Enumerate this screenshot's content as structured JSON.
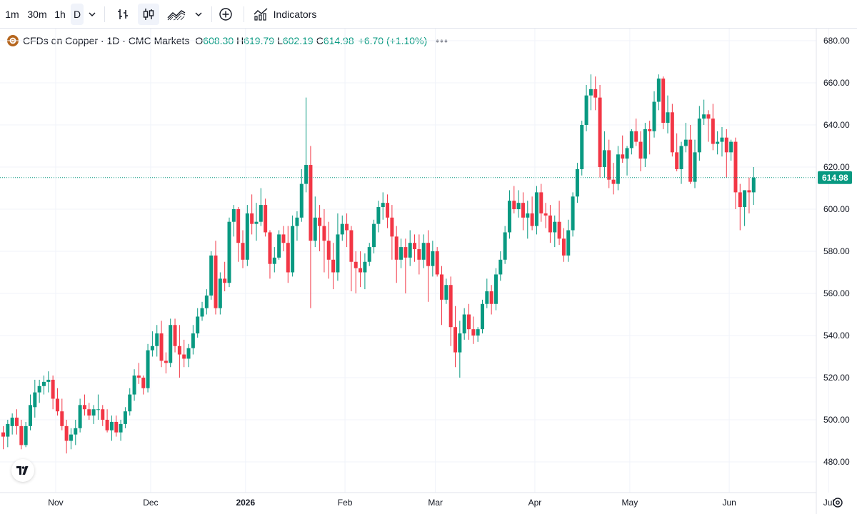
{
  "toolbar": {
    "intervals": [
      {
        "label": "1m",
        "active": false
      },
      {
        "label": "30m",
        "active": false
      },
      {
        "label": "1h",
        "active": false
      },
      {
        "label": "D",
        "active": true
      }
    ],
    "interval_dropdown_icon": "chevron-down-icon",
    "bar_style_icon": "bars-icon",
    "candle_style_icon": "candles-icon",
    "chart_type_icon": "line-area-icon",
    "chart_type_dropdown_icon": "chevron-down-icon",
    "compare_icon": "plus-circle-icon",
    "indicators_icon": "indicators-icon",
    "indicators_label": "Indicators"
  },
  "legend": {
    "symbol_icon": "copper-symbol-icon",
    "title": "CFDs on Copper · 1D · CMC Markets",
    "open_label": "O",
    "open": "608.30",
    "high_label": "H",
    "high": "619.79",
    "low_label": "L",
    "low": "602.19",
    "close_label": "C",
    "close": "614.98",
    "change": "+6.70 (+1.10%)",
    "more_icon": "more-dots-icon"
  },
  "colors": {
    "up": "#089981",
    "down": "#f23645",
    "grid": "#f0f3fa",
    "axis_text": "#131722",
    "price_line": "#089981"
  },
  "chart_data": {
    "type": "candlestick",
    "title": "CFDs on Copper · 1D · CMC Markets",
    "interval": "1D",
    "ylim": [
      472,
      685
    ],
    "y_ticks": [
      480,
      500,
      520,
      540,
      560,
      580,
      600,
      620,
      640,
      660,
      680
    ],
    "y_tick_labels": [
      "480.00",
      "500.00",
      "520.00",
      "540.00",
      "560.00",
      "580.00",
      "600.00",
      "620.00",
      "640.00",
      "660.00",
      "680.00"
    ],
    "x_ticks": [
      {
        "label": "Nov",
        "index": 12
      },
      {
        "label": "Dec",
        "index": 33
      },
      {
        "label": "2026",
        "index": 54
      },
      {
        "label": "Feb",
        "index": 76
      },
      {
        "label": "Mar",
        "index": 96
      },
      {
        "label": "Apr",
        "index": 118
      },
      {
        "label": "May",
        "index": 139
      },
      {
        "label": "Jun",
        "index": 161
      },
      {
        "label": "Jul",
        "index": 183
      }
    ],
    "last_price": 614.98,
    "last_price_label": "614.98",
    "ohlc": [
      [
        494,
        497,
        486,
        492
      ],
      [
        492,
        500,
        487,
        498
      ],
      [
        497,
        503,
        493,
        501
      ],
      [
        501,
        505,
        493,
        497
      ],
      [
        497,
        500,
        486,
        488
      ],
      [
        488,
        499,
        487,
        497
      ],
      [
        497,
        512,
        495,
        507
      ],
      [
        506,
        519,
        501,
        513
      ],
      [
        513,
        519,
        508,
        516
      ],
      [
        516,
        521,
        512,
        518
      ],
      [
        518,
        523,
        513,
        519
      ],
      [
        519,
        521,
        505,
        510
      ],
      [
        510,
        515,
        502,
        504
      ],
      [
        504,
        510,
        495,
        497
      ],
      [
        497,
        500,
        484,
        490
      ],
      [
        490,
        496,
        486,
        493
      ],
      [
        493,
        500,
        488,
        496
      ],
      [
        496,
        510,
        494,
        507
      ],
      [
        507,
        512,
        502,
        505
      ],
      [
        505,
        508,
        500,
        502
      ],
      [
        502,
        507,
        498,
        505
      ],
      [
        505,
        512,
        500,
        505
      ],
      [
        505,
        507,
        497,
        500
      ],
      [
        500,
        505,
        494,
        495
      ],
      [
        495,
        502,
        490,
        499
      ],
      [
        499,
        502,
        492,
        494
      ],
      [
        494,
        500,
        490,
        498
      ],
      [
        498,
        506,
        496,
        504
      ],
      [
        504,
        515,
        502,
        512
      ],
      [
        512,
        524,
        509,
        521
      ],
      [
        521,
        527,
        517,
        520
      ],
      [
        520,
        521,
        512,
        515
      ],
      [
        515,
        536,
        513,
        533
      ],
      [
        533,
        542,
        530,
        535
      ],
      [
        535,
        545,
        530,
        541
      ],
      [
        541,
        547,
        525,
        528
      ],
      [
        528,
        532,
        522,
        527
      ],
      [
        527,
        548,
        525,
        545
      ],
      [
        545,
        548,
        532,
        535
      ],
      [
        535,
        545,
        520,
        531
      ],
      [
        531,
        538,
        525,
        529
      ],
      [
        529,
        536,
        525,
        534
      ],
      [
        534,
        545,
        531,
        541
      ],
      [
        541,
        553,
        539,
        549
      ],
      [
        549,
        556,
        547,
        553
      ],
      [
        553,
        562,
        550,
        559
      ],
      [
        559,
        580,
        557,
        578
      ],
      [
        578,
        585,
        550,
        553
      ],
      [
        553,
        570,
        550,
        567
      ],
      [
        567,
        575,
        561,
        565
      ],
      [
        565,
        596,
        563,
        594
      ],
      [
        594,
        602,
        587,
        600
      ],
      [
        600,
        601,
        575,
        584
      ],
      [
        584,
        590,
        572,
        576
      ],
      [
        576,
        602,
        573,
        598
      ],
      [
        598,
        607,
        588,
        593
      ],
      [
        593,
        603,
        585,
        594
      ],
      [
        594,
        610,
        592,
        602
      ],
      [
        602,
        605,
        587,
        589
      ],
      [
        589,
        590,
        567,
        574
      ],
      [
        574,
        582,
        570,
        577
      ],
      [
        577,
        590,
        576,
        588
      ],
      [
        588,
        592,
        580,
        584
      ],
      [
        584,
        592,
        565,
        570
      ],
      [
        570,
        597,
        568,
        592
      ],
      [
        592,
        599,
        585,
        596
      ],
      [
        596,
        619,
        594,
        612
      ],
      [
        612,
        653,
        608,
        621
      ],
      [
        621,
        630,
        553,
        585
      ],
      [
        585,
        606,
        582,
        596
      ],
      [
        596,
        602,
        580,
        592
      ],
      [
        592,
        600,
        570,
        585
      ],
      [
        585,
        594,
        567,
        576
      ],
      [
        576,
        584,
        562,
        570
      ],
      [
        570,
        598,
        566,
        588
      ],
      [
        588,
        597,
        585,
        593
      ],
      [
        593,
        598,
        582,
        590
      ],
      [
        590,
        592,
        561,
        575
      ],
      [
        575,
        580,
        560,
        572
      ],
      [
        572,
        580,
        563,
        570
      ],
      [
        570,
        579,
        562,
        575
      ],
      [
        575,
        584,
        573,
        582
      ],
      [
        582,
        595,
        579,
        593
      ],
      [
        593,
        604,
        589,
        601
      ],
      [
        601,
        608,
        595,
        603
      ],
      [
        603,
        607,
        591,
        596
      ],
      [
        596,
        602,
        576,
        587
      ],
      [
        587,
        592,
        565,
        576
      ],
      [
        576,
        586,
        572,
        582
      ],
      [
        582,
        586,
        560,
        577
      ],
      [
        577,
        590,
        573,
        584
      ],
      [
        584,
        588,
        575,
        581
      ],
      [
        581,
        588,
        569,
        576
      ],
      [
        576,
        588,
        572,
        584
      ],
      [
        584,
        590,
        556,
        573
      ],
      [
        573,
        585,
        568,
        580
      ],
      [
        580,
        582,
        568,
        569
      ],
      [
        569,
        573,
        545,
        557
      ],
      [
        557,
        567,
        555,
        564
      ],
      [
        564,
        568,
        535,
        544
      ],
      [
        544,
        554,
        525,
        532
      ],
      [
        532,
        547,
        520,
        541
      ],
      [
        541,
        553,
        538,
        550
      ],
      [
        550,
        555,
        538,
        543
      ],
      [
        543,
        549,
        536,
        540
      ],
      [
        540,
        544,
        537,
        543
      ],
      [
        543,
        557,
        541,
        555
      ],
      [
        555,
        567,
        553,
        561
      ],
      [
        561,
        564,
        550,
        555
      ],
      [
        555,
        572,
        552,
        569
      ],
      [
        569,
        580,
        566,
        576
      ],
      [
        576,
        592,
        574,
        589
      ],
      [
        589,
        609,
        586,
        604
      ],
      [
        604,
        611,
        598,
        600
      ],
      [
        600,
        609,
        596,
        603
      ],
      [
        603,
        608,
        590,
        596
      ],
      [
        596,
        604,
        586,
        598
      ],
      [
        598,
        606,
        590,
        592
      ],
      [
        592,
        611,
        588,
        608
      ],
      [
        608,
        612,
        594,
        598
      ],
      [
        598,
        603,
        591,
        597
      ],
      [
        597,
        602,
        584,
        589
      ],
      [
        589,
        597,
        582,
        594
      ],
      [
        594,
        604,
        583,
        586
      ],
      [
        586,
        591,
        575,
        578
      ],
      [
        578,
        595,
        575,
        590
      ],
      [
        590,
        608,
        587,
        606
      ],
      [
        606,
        622,
        603,
        619
      ],
      [
        619,
        642,
        616,
        640
      ],
      [
        640,
        659,
        637,
        654
      ],
      [
        654,
        664,
        647,
        657
      ],
      [
        657,
        663,
        647,
        653
      ],
      [
        653,
        659,
        615,
        620
      ],
      [
        620,
        637,
        615,
        628
      ],
      [
        628,
        633,
        610,
        614
      ],
      [
        614,
        622,
        607,
        612
      ],
      [
        612,
        630,
        609,
        626
      ],
      [
        626,
        635,
        622,
        624
      ],
      [
        624,
        630,
        616,
        629
      ],
      [
        629,
        638,
        626,
        637
      ],
      [
        637,
        643,
        630,
        632
      ],
      [
        632,
        637,
        618,
        624
      ],
      [
        624,
        641,
        620,
        638
      ],
      [
        638,
        642,
        626,
        637
      ],
      [
        637,
        656,
        634,
        651
      ],
      [
        651,
        664,
        647,
        662
      ],
      [
        662,
        663,
        638,
        641
      ],
      [
        641,
        654,
        636,
        646
      ],
      [
        646,
        650,
        625,
        627
      ],
      [
        627,
        636,
        618,
        619
      ],
      [
        619,
        632,
        612,
        630
      ],
      [
        630,
        641,
        627,
        633
      ],
      [
        633,
        640,
        612,
        613
      ],
      [
        613,
        633,
        610,
        627
      ],
      [
        627,
        649,
        623,
        643
      ],
      [
        643,
        652,
        640,
        645
      ],
      [
        645,
        647,
        632,
        643
      ],
      [
        643,
        650,
        628,
        631
      ],
      [
        631,
        637,
        626,
        632
      ],
      [
        632,
        639,
        625,
        634
      ],
      [
        634,
        638,
        615,
        627
      ],
      [
        627,
        633,
        623,
        632
      ],
      [
        632,
        634,
        600,
        608
      ],
      [
        608,
        612,
        590,
        601
      ],
      [
        601,
        609,
        592,
        609
      ],
      [
        609,
        615,
        598,
        608
      ],
      [
        608,
        620,
        602,
        615
      ]
    ]
  }
}
